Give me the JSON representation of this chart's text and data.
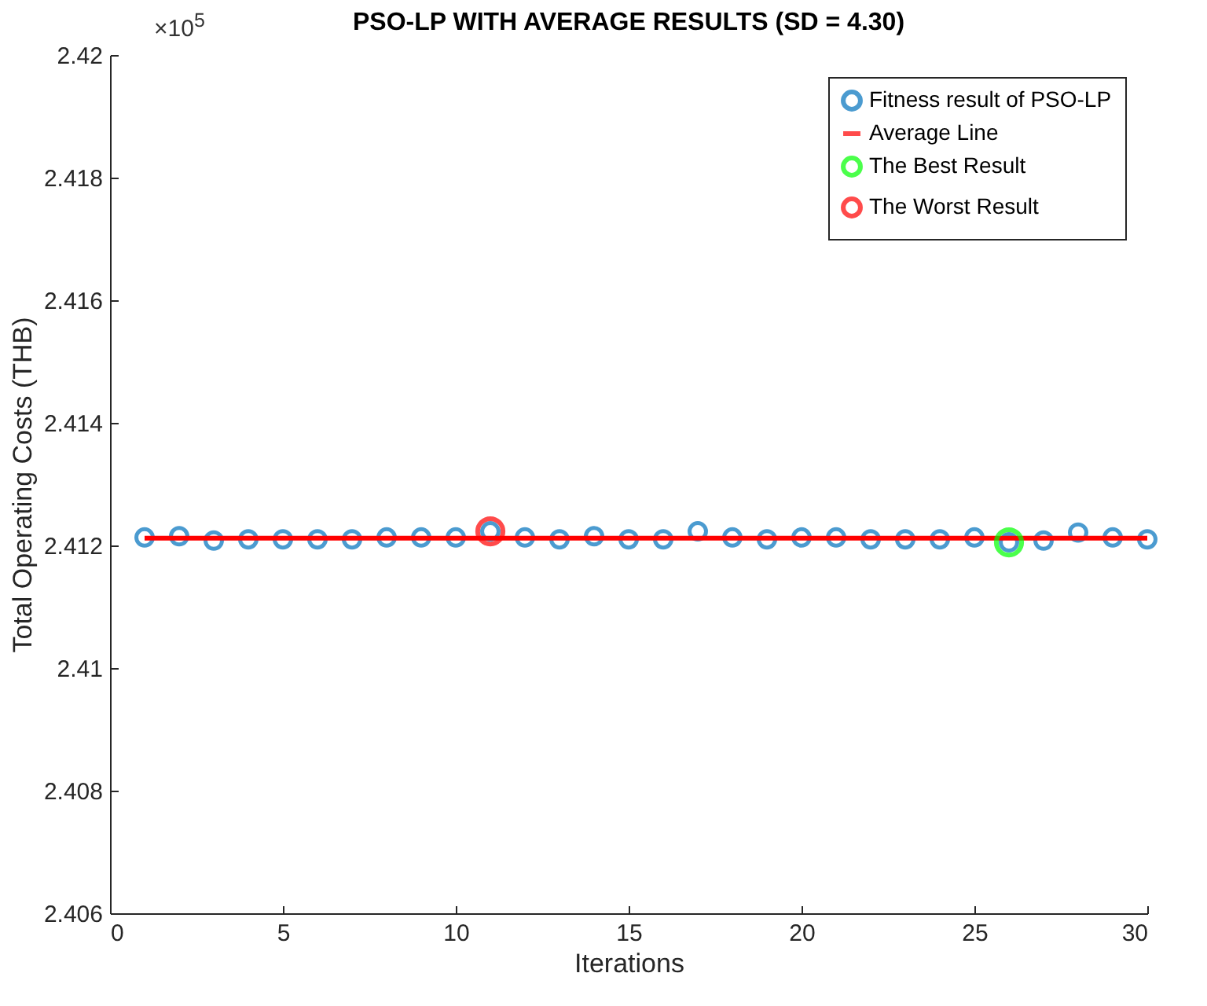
{
  "chart_data": {
    "type": "scatter",
    "title": "PSO-LP WITH AVERAGE RESULTS (SD = 4.30)",
    "xlabel": "Iterations",
    "ylabel": "Total Operating Costs (THB)",
    "annotations": [
      "×10$^{5}$"
    ],
    "x": [
      1,
      2,
      3,
      4,
      5,
      6,
      7,
      8,
      9,
      10,
      11,
      12,
      13,
      14,
      15,
      16,
      17,
      18,
      19,
      20,
      21,
      22,
      23,
      24,
      25,
      26,
      27,
      28,
      29,
      30
    ],
    "series": [
      {
        "name": "Fitness result of PSO-LP",
        "color": "#0072bd",
        "values": [
          2.41213,
          2.41215,
          2.41208,
          2.4121,
          2.4121,
          2.4121,
          2.4121,
          2.41213,
          2.41213,
          2.41213,
          2.41223,
          2.41213,
          2.4121,
          2.41215,
          2.4121,
          2.4121,
          2.41223,
          2.41213,
          2.4121,
          2.41213,
          2.41213,
          2.4121,
          2.4121,
          2.4121,
          2.41213,
          2.41205,
          2.41208,
          2.41221,
          2.41213,
          2.4121
        ]
      },
      {
        "name": "Average Line",
        "type": "line",
        "marker": "none",
        "color": "#ff0000",
        "x": [
          1,
          30
        ],
        "values": [
          2.41212,
          2.41212
        ]
      },
      {
        "name": "The Best Result",
        "type": "scatter",
        "color": "#00ff00",
        "x": [
          26
        ],
        "values": [
          2.41205
        ]
      },
      {
        "name": "The Worst Result",
        "type": "scatter",
        "color": "#ff0000",
        "x": [
          11
        ],
        "values": [
          2.41223
        ]
      }
    ],
    "xlim": [
      0,
      30
    ],
    "xticks": [
      0,
      5,
      10,
      15,
      20,
      25,
      30
    ],
    "ylim": [
      2.406,
      2.42
    ],
    "yticks": [
      2.406,
      2.408,
      2.41,
      2.412,
      2.414,
      2.416,
      2.418,
      2.42
    ],
    "legend": "top right",
    "marker": "circle",
    "grid": false
  }
}
